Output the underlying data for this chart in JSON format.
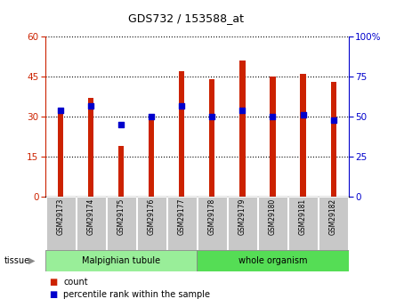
{
  "title": "GDS732 / 153588_at",
  "samples": [
    "GSM29173",
    "GSM29174",
    "GSM29175",
    "GSM29176",
    "GSM29177",
    "GSM29178",
    "GSM29179",
    "GSM29180",
    "GSM29181",
    "GSM29182"
  ],
  "counts": [
    31,
    37,
    19,
    29,
    47,
    44,
    51,
    45,
    46,
    43
  ],
  "percentiles": [
    54,
    57,
    45,
    50,
    57,
    50,
    54,
    50,
    51,
    48
  ],
  "tissue_groups": [
    {
      "label": "Malpighian tubule",
      "start": 0,
      "end": 4,
      "color": "#99ee99"
    },
    {
      "label": "whole organism",
      "start": 5,
      "end": 9,
      "color": "#55dd55"
    }
  ],
  "left_ylim": [
    0,
    60
  ],
  "right_ylim": [
    0,
    100
  ],
  "left_yticks": [
    0,
    15,
    30,
    45,
    60
  ],
  "right_yticks": [
    0,
    25,
    50,
    75,
    100
  ],
  "right_yticklabels": [
    "0",
    "25",
    "50",
    "75",
    "100%"
  ],
  "bar_color": "#cc2200",
  "marker_color": "#0000cc",
  "bar_width": 0.18,
  "grid_color": "#000000",
  "bg_color": "#ffffff",
  "plot_bg": "#ffffff",
  "tick_bg": "#cccccc",
  "tissue_label": "tissue",
  "legend_count": "count",
  "legend_percentile": "percentile rank within the sample"
}
